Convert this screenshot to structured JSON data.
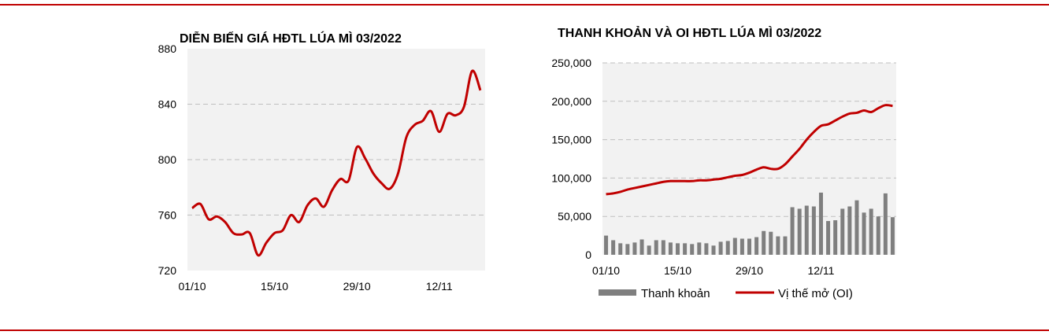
{
  "colors": {
    "line": "#c00000",
    "bar": "#7f7f7f",
    "plot_bg": "#f2f2f2",
    "grid": "#bfbfbf",
    "rule": "#c00000"
  },
  "chart_data": [
    {
      "type": "line",
      "title": "DIỄN BIẾN GIÁ HĐTL LÚA MÌ 03/2022",
      "xlabel": "",
      "ylabel": "",
      "ylim": [
        720,
        880
      ],
      "yticks": [
        "880",
        "840",
        "800",
        "760",
        "720"
      ],
      "ytick_values": [
        880,
        840,
        800,
        760,
        720
      ],
      "xticks": [
        "01/10",
        "15/10",
        "29/10",
        "12/11"
      ],
      "xtick_index": [
        0,
        10,
        20,
        30
      ],
      "grid": true,
      "series": [
        {
          "values": [
            765,
            768,
            757,
            759,
            755,
            747,
            746,
            747,
            731,
            740,
            747,
            749,
            760,
            755,
            767,
            772,
            766,
            778,
            786,
            785,
            809,
            801,
            790,
            783,
            779,
            790,
            816,
            825,
            828,
            835,
            820,
            833,
            832,
            838,
            864,
            850
          ]
        }
      ]
    },
    {
      "type": "bar+line",
      "title": "THANH KHOẢN VÀ OI HĐTL LÚA MÌ  03/2022",
      "xlabel": "",
      "ylabel": "",
      "ylim": [
        0,
        250000
      ],
      "yticks": [
        "250,000",
        "200,000",
        "150,000",
        "100,000",
        "50,000",
        "0"
      ],
      "ytick_values": [
        250000,
        200000,
        150000,
        100000,
        50000,
        0
      ],
      "xticks": [
        "01/10",
        "15/10",
        "29/10",
        "12/11"
      ],
      "xtick_index": [
        0,
        10,
        20,
        30
      ],
      "grid": true,
      "legend_position": "bottom",
      "series": [
        {
          "name": "Thanh khoản",
          "kind": "bar",
          "values": [
            25000,
            19000,
            15000,
            14000,
            16000,
            20000,
            12000,
            19000,
            19000,
            16000,
            15000,
            15000,
            14000,
            16000,
            15000,
            12000,
            17000,
            18000,
            22000,
            21000,
            21000,
            23000,
            31000,
            30000,
            24000,
            24000,
            62000,
            60000,
            64000,
            63000,
            81000,
            44000,
            45000,
            60000,
            63000,
            71000,
            55000,
            60000,
            50000,
            80000,
            49000
          ]
        },
        {
          "name": "Vị thế mở (OI)",
          "kind": "line",
          "values": [
            79000,
            80000,
            82000,
            85000,
            87000,
            89000,
            91000,
            93000,
            95000,
            96000,
            96000,
            96000,
            96000,
            97000,
            97000,
            98000,
            99000,
            101000,
            103000,
            104000,
            107000,
            111000,
            114000,
            112000,
            112000,
            118000,
            128000,
            138000,
            150000,
            160000,
            168000,
            170000,
            175000,
            180000,
            184000,
            185000,
            188000,
            186000,
            191000,
            195000,
            194000
          ]
        }
      ]
    }
  ]
}
